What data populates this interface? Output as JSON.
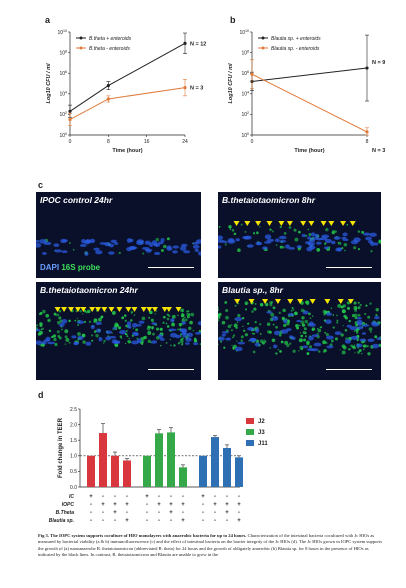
{
  "panels": {
    "a": "a",
    "b": "b",
    "c": "c",
    "d": "d"
  },
  "chart_data": [
    {
      "type": "line",
      "panel": "a",
      "ylabel": "Log10 CFU / ml",
      "xlabel": "Time (hour)",
      "x_ticks": [
        "0",
        "8",
        "16",
        "24"
      ],
      "y_ticks": [
        "10^0",
        "10^2",
        "10^4",
        "10^6",
        "10^8",
        "10^10"
      ],
      "ylim": [
        0,
        10
      ],
      "series": [
        {
          "name": "B.theta + enteroids",
          "color": "#222222",
          "x": [
            0,
            8,
            24
          ],
          "y": [
            2.3,
            4.8,
            8.9
          ],
          "err": [
            0.6,
            0.4,
            1.0
          ],
          "n_label": "N = 12"
        },
        {
          "name": "B.theta - enteroids",
          "color": "#e07a3a",
          "x": [
            0,
            8,
            24
          ],
          "y": [
            1.5,
            3.5,
            4.6
          ],
          "err": [
            0.6,
            0.3,
            0.8
          ],
          "n_label": "N = 3"
        }
      ]
    },
    {
      "type": "line",
      "panel": "b",
      "ylabel": "Log10 CFU / ml",
      "xlabel": "Time (hour)",
      "x_ticks": [
        "0",
        "8"
      ],
      "y_ticks": [
        "10^0",
        "10^2",
        "10^4",
        "10^6",
        "10^8",
        "10^10"
      ],
      "ylim": [
        0,
        10
      ],
      "series": [
        {
          "name": "Blautia sp. + enteroids",
          "color": "#222222",
          "x": [
            0,
            8
          ],
          "y": [
            5.2,
            6.5
          ],
          "err": [
            0.9,
            3.2
          ],
          "n_label": "N = 9"
        },
        {
          "name": "Blautia sp. - enteroids",
          "color": "#e07a3a",
          "x": [
            0,
            8
          ],
          "y": [
            5.9,
            0.3
          ],
          "err": [
            1.4,
            0.4
          ],
          "n_label": "N = 3"
        }
      ]
    },
    {
      "type": "bar",
      "panel": "d",
      "ylabel": "Fold change in TEER",
      "ylim": [
        0,
        2.5
      ],
      "y_ticks": [
        "0.0",
        "0.5",
        "1.0",
        "1.5",
        "2.0",
        "2.5"
      ],
      "reference_line": 1.0,
      "groups": [
        "J2",
        "J3",
        "J11"
      ],
      "series": [
        {
          "name": "J2",
          "color": "#d8373d",
          "values": [
            1.0,
            1.73,
            1.0,
            0.85
          ],
          "err": [
            0.0,
            0.3,
            0.12,
            0.06
          ]
        },
        {
          "name": "J3",
          "color": "#35a84a",
          "values": [
            1.0,
            1.72,
            1.75,
            0.63
          ],
          "err": [
            0.0,
            0.12,
            0.15,
            0.08
          ]
        },
        {
          "name": "J11",
          "color": "#2f6fb3",
          "values": [
            1.0,
            1.6,
            1.25,
            0.95
          ],
          "err": [
            0.0,
            0.05,
            0.1,
            0.05
          ]
        }
      ],
      "condition_rows": [
        {
          "label": "IC",
          "marks": [
            "+",
            "-",
            "-",
            "-",
            "+",
            "-",
            "-",
            "-",
            "+",
            "-",
            "-",
            "-"
          ]
        },
        {
          "label": "IOPC",
          "marks": [
            "-",
            "+",
            "+",
            "+",
            "-",
            "+",
            "+",
            "+",
            "-",
            "+",
            "+",
            "+"
          ]
        },
        {
          "label": "B.Theta",
          "marks": [
            "-",
            "-",
            "+",
            "-",
            "-",
            "-",
            "+",
            "-",
            "-",
            "-",
            "+",
            "-"
          ]
        },
        {
          "label": "Blautia sp.",
          "marks": [
            "-",
            "-",
            "-",
            "+",
            "-",
            "-",
            "-",
            "+",
            "-",
            "-",
            "-",
            "+"
          ]
        }
      ]
    }
  ],
  "micrographs": [
    {
      "label": "IPOC control 24hr",
      "arrows": 0
    },
    {
      "label": "B.thetaiotaomicron 8hr",
      "arrows": 12
    },
    {
      "label": "B.thetaiotaomicron 24hr",
      "arrows": 18
    },
    {
      "label": "Blautia sp., 8hr",
      "arrows": 10
    }
  ],
  "stain_legend": {
    "dapi": "DAPI",
    "probe": "16S probe"
  },
  "caption": {
    "fig": "Fig 3.",
    "title": "The IOPC system supports coculture of HIO monolayers with anaerobic bacteria for up to 24 hours.",
    "body": "Characterization of the intestinal bacteria cocultured with Jc HIOs as measured by bacterial viability (a & b) immunofluorescence (c) and the effect of intestinal bacteria on the barrier integrity of the Jc HIOs (d). The Jc HIOs grown in IOPC system supports the growth of (a) nanoanaerobe B. thetaiotaomicron (abbreviated B. theta) for 24 hours and the growth of obligately anaerobic (b) Blautia sp. for 8 hours in the presence of HIOs as indicated by the black lines. In contrast, B. thetaiotaomicron and Blautia are unable to grow in the"
  }
}
